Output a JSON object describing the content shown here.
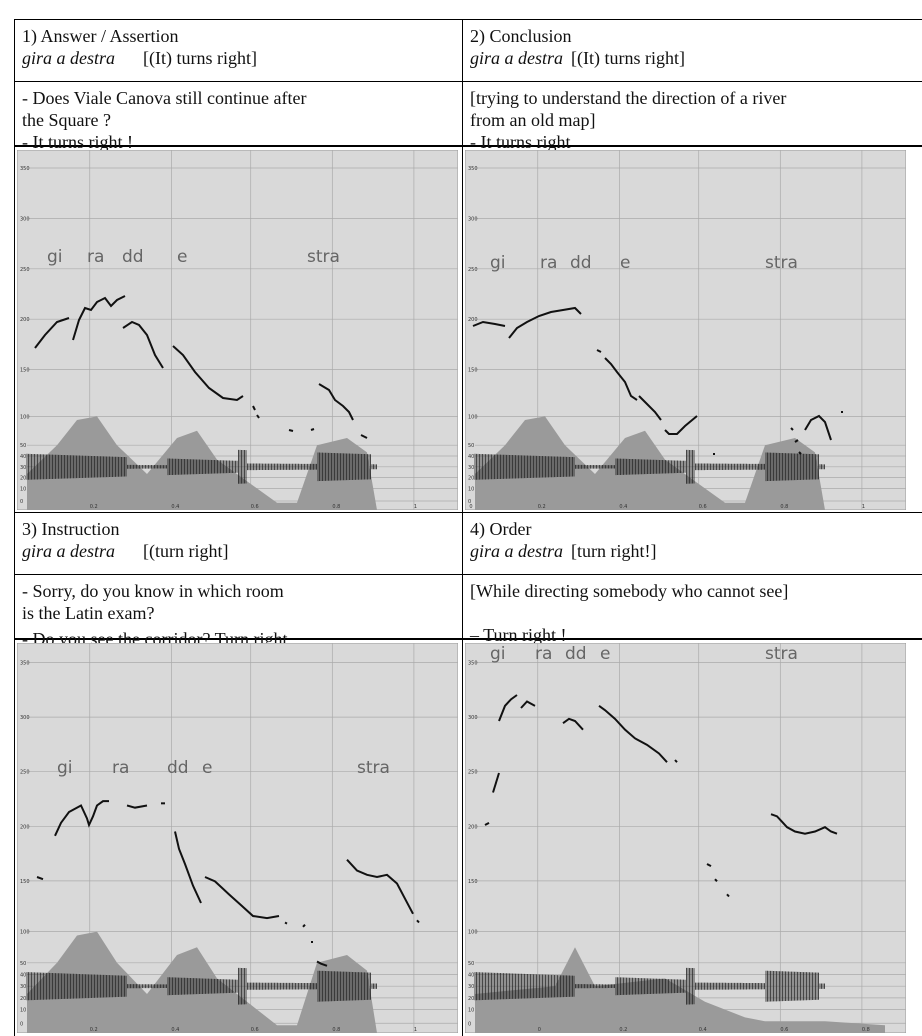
{
  "panels": [
    {
      "title": "1) Answer / Assertion",
      "phrase": "gira a destra",
      "gloss": "[(It) turns right]",
      "context": [
        "- Does Viale Canova still continue after",
        "the Square ?",
        "- It turns right !"
      ],
      "plot": {
        "syllables": [
          "gi",
          "ra",
          "dd",
          "e",
          "stra"
        ],
        "yticks": [
          "350",
          "300",
          "250",
          "200",
          "150",
          "100",
          "50",
          "40",
          "30",
          "20",
          "10",
          "0"
        ],
        "xticks": [
          "0.2",
          "0.4",
          "0.6",
          "0.8",
          "1"
        ]
      }
    },
    {
      "title": "2) Conclusion",
      "phrase": "gira a destra",
      "gloss": "[(It) turns right]",
      "context": [
        "[trying to understand the direction of a river",
        "from an old map]",
        "- It turns right"
      ],
      "plot": {
        "syllables": [
          "gi",
          "ra",
          "dd",
          "e",
          "stra"
        ],
        "yticks": [
          "350",
          "300",
          "250",
          "200",
          "150",
          "100",
          "50",
          "40",
          "30",
          "20",
          "10",
          "0"
        ],
        "xticks": [
          "0",
          "0.2",
          "0.4",
          "0.6",
          "0.8",
          "1"
        ]
      }
    },
    {
      "title": "3) Instruction",
      "phrase": "gira a destra",
      "gloss": "[(turn right]",
      "context": [
        "- Sorry, do you know in which room",
        "is the Latin exam?",
        "- Do you see the corridor? Turn right"
      ],
      "plot": {
        "syllables": [
          "gi",
          "ra",
          "dd",
          "e",
          "stra"
        ],
        "yticks": [
          "350",
          "300",
          "250",
          "200",
          "150",
          "100",
          "50",
          "40",
          "30",
          "20",
          "10",
          "0"
        ],
        "xticks": [
          "0.2",
          "0.4",
          "0.6",
          "0.8",
          "1"
        ]
      }
    },
    {
      "title": "4) Order",
      "phrase": "gira a destra",
      "gloss": "[turn right!]",
      "context": [
        "[While directing somebody who cannot see]",
        "– Turn right !"
      ],
      "plot": {
        "syllables": [
          "gi",
          "ra",
          "dd",
          "e",
          "stra"
        ],
        "yticks": [
          "350",
          "300",
          "250",
          "200",
          "150",
          "100",
          "50",
          "40",
          "30",
          "20",
          "10",
          "0"
        ],
        "xticks": [
          "0",
          "0.2",
          "0.4",
          "0.6",
          "0.8"
        ]
      }
    }
  ]
}
